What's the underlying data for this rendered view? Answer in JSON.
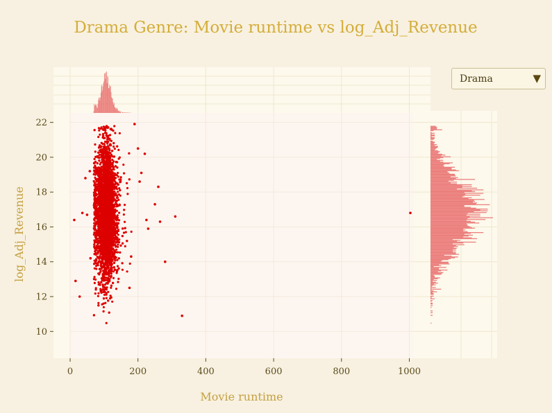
{
  "chart_data": {
    "type": "scatter",
    "title": "Drama Genre: Movie runtime vs log_Adj_Revenue",
    "xlabel": "Movie runtime",
    "ylabel": "log_Adj_Revenue",
    "xlim": [
      -50,
      1050
    ],
    "ylim": [
      8.4,
      22.6
    ],
    "x_ticks": [
      0,
      200,
      400,
      600,
      800,
      1000
    ],
    "y_ticks": [
      10,
      12,
      14,
      16,
      18,
      20,
      22
    ],
    "marginal_x": "histogram",
    "marginal_y": "histogram",
    "grid": true,
    "colors": {
      "points": "#dd0000",
      "histogram": "#e86868",
      "title": "#d4ad3a",
      "axis_label": "#c4a040",
      "tick_label": "#5a4a1a",
      "plot_bg": "#fdf6f0",
      "panel_bg": "#fdf9ec",
      "paper_bg": "#f8f1e1"
    },
    "points_core": {
      "description_free": true,
      "x_center": 105,
      "x_spread": 22,
      "y_center": 16.8,
      "y_spread": 1.9,
      "count": 4200
    },
    "outliers": [
      [
        12,
        16.4
      ],
      [
        16,
        12.9
      ],
      [
        28,
        12.0
      ],
      [
        36,
        16.8
      ],
      [
        45,
        18.8
      ],
      [
        50,
        16.7
      ],
      [
        58,
        19.2
      ],
      [
        60,
        14.2
      ],
      [
        190,
        21.9
      ],
      [
        200,
        20.5
      ],
      [
        210,
        19.1
      ],
      [
        220,
        20.2
      ],
      [
        225,
        16.4
      ],
      [
        230,
        15.9
      ],
      [
        250,
        17.3
      ],
      [
        260,
        18.3
      ],
      [
        265,
        16.3
      ],
      [
        280,
        14.0
      ],
      [
        310,
        16.6
      ],
      [
        330,
        10.9
      ],
      [
        1003,
        16.8
      ],
      [
        175,
        12.5
      ],
      [
        180,
        14.3
      ],
      [
        205,
        18.6
      ]
    ]
  },
  "dropdown": {
    "selected": "Drama",
    "arrow": "▼"
  }
}
